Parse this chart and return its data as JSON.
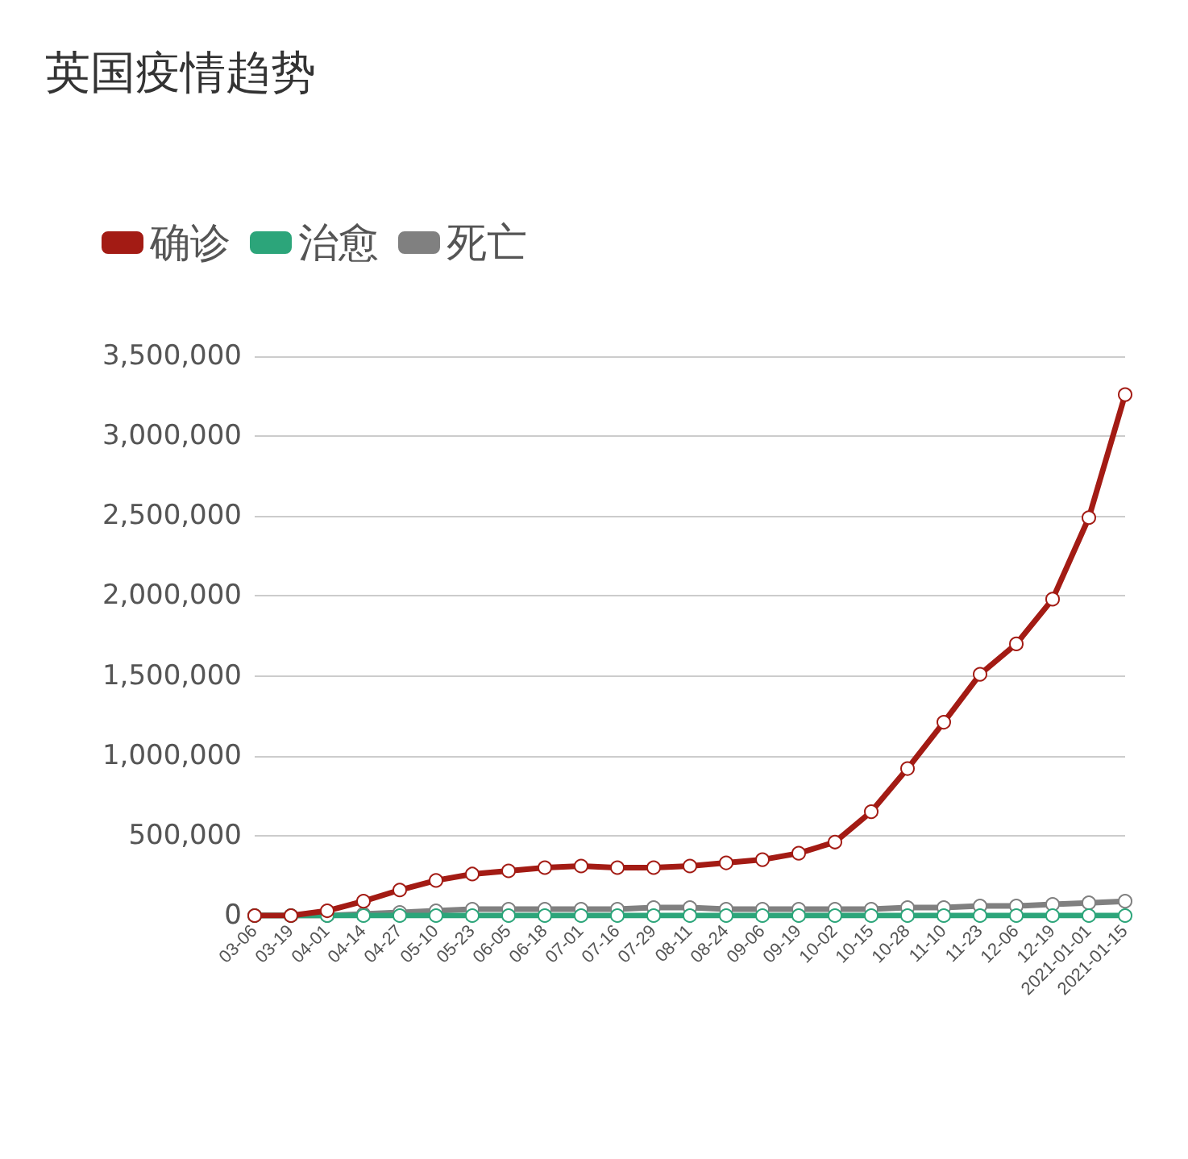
{
  "chart_data": {
    "type": "line",
    "title": "英国疫情趋势",
    "categories": [
      "03-06",
      "03-19",
      "04-01",
      "04-14",
      "04-27",
      "05-10",
      "05-23",
      "06-05",
      "06-18",
      "07-01",
      "07-16",
      "07-29",
      "08-11",
      "08-24",
      "09-06",
      "09-19",
      "10-02",
      "10-15",
      "10-28",
      "11-10",
      "11-23",
      "12-06",
      "12-19",
      "2021-01-01",
      "2021-01-15"
    ],
    "series": [
      {
        "name": "确诊",
        "color": "#a31b14",
        "values": [
          0,
          0,
          30000,
          90000,
          160000,
          220000,
          260000,
          280000,
          300000,
          310000,
          300000,
          300000,
          310000,
          330000,
          350000,
          390000,
          460000,
          650000,
          920000,
          1210000,
          1510000,
          1700000,
          1980000,
          2490000,
          3260000
        ]
      },
      {
        "name": "治愈",
        "color": "#2ca57a",
        "values": [
          0,
          0,
          0,
          0,
          0,
          0,
          0,
          0,
          0,
          0,
          0,
          0,
          0,
          0,
          0,
          0,
          0,
          0,
          0,
          0,
          0,
          0,
          0,
          0,
          0
        ]
      },
      {
        "name": "死亡",
        "color": "#808080",
        "values": [
          0,
          0,
          0,
          10000,
          20000,
          30000,
          40000,
          40000,
          40000,
          40000,
          40000,
          50000,
          50000,
          40000,
          40000,
          40000,
          40000,
          40000,
          50000,
          50000,
          60000,
          60000,
          70000,
          80000,
          90000
        ]
      }
    ],
    "ylim": [
      0,
      3500000
    ],
    "yticks": [
      {
        "value": 0,
        "label": "0"
      },
      {
        "value": 500000,
        "label": "500,000"
      },
      {
        "value": 1000000,
        "label": "1,000,000"
      },
      {
        "value": 1500000,
        "label": "1,500,000"
      },
      {
        "value": 2000000,
        "label": "2,000,000"
      },
      {
        "value": 2500000,
        "label": "2,500,000"
      },
      {
        "value": 3000000,
        "label": "3,000,000"
      },
      {
        "value": 3500000,
        "label": "3,500,000"
      }
    ],
    "grid": "y",
    "legend": "top left",
    "marker": "circle",
    "line_style": "solid"
  }
}
